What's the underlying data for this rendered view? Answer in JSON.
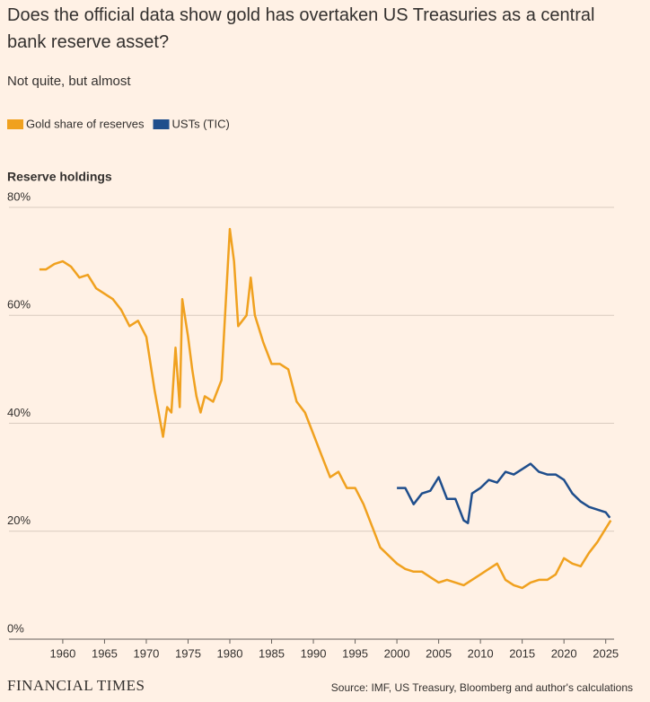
{
  "chart_data": {
    "type": "line",
    "title": "Does the official data show gold has overtaken US Treasuries as a central bank reserve asset?",
    "subtitle": "Not quite, but almost",
    "y_label": "Reserve holdings",
    "source": "Source: IMF, US Treasury, Bloomberg and author's calculations",
    "brand": "FINANCIAL TIMES",
    "xlim": [
      1957,
      2026
    ],
    "xticks": [
      1960,
      1965,
      1970,
      1975,
      1980,
      1985,
      1990,
      1995,
      2000,
      2005,
      2010,
      2015,
      2020,
      2025
    ],
    "ylim": [
      0,
      80
    ],
    "yticks": [
      {
        "value": 0,
        "label": "0%"
      },
      {
        "value": 20,
        "label": "20%"
      },
      {
        "value": 40,
        "label": "40%"
      },
      {
        "value": 60,
        "label": "60%"
      },
      {
        "value": 80,
        "label": "80%"
      }
    ],
    "grid": true,
    "series": [
      {
        "name": "Gold share of reserves",
        "color": "#f0a11f",
        "x": [
          1957.2,
          1958,
          1959,
          1960,
          1961,
          1962,
          1963,
          1964,
          1965,
          1966,
          1967,
          1968,
          1969,
          1970,
          1971,
          1972,
          1972.5,
          1973,
          1973.5,
          1974,
          1974.3,
          1975,
          1975.5,
          1976,
          1976.5,
          1977,
          1978,
          1979,
          1980,
          1980.5,
          1981,
          1982,
          1982.5,
          1983,
          1984,
          1985,
          1986,
          1987,
          1988,
          1989,
          1990,
          1991,
          1992,
          1993,
          1994,
          1995,
          1996,
          1997,
          1998,
          1999,
          2000,
          2001,
          2002,
          2003,
          2004,
          2005,
          2006,
          2007,
          2008,
          2009,
          2010,
          2011,
          2012,
          2013,
          2014,
          2015,
          2016,
          2017,
          2018,
          2019,
          2020,
          2021,
          2022,
          2023,
          2024,
          2025,
          2025.6
        ],
        "values": [
          68.5,
          68.5,
          69.5,
          70,
          69,
          67,
          67.5,
          65,
          64,
          63,
          61,
          58,
          59,
          56,
          46,
          37.5,
          43,
          42,
          54,
          43,
          63,
          56,
          50,
          45,
          42,
          45,
          44,
          48,
          76,
          70,
          58,
          60,
          67,
          60,
          55,
          51,
          51,
          50,
          44,
          42,
          38,
          34,
          30,
          31,
          28,
          28,
          25,
          21,
          17,
          15.5,
          14,
          13,
          12.5,
          12.5,
          11.5,
          10.5,
          11,
          10.5,
          10,
          11,
          12,
          13,
          14,
          11,
          10,
          9.5,
          10.5,
          11,
          11,
          12,
          15,
          14,
          13.5,
          16,
          18,
          20.5,
          22
        ]
      },
      {
        "name": "USTs (TIC)",
        "color": "#1f4e8c",
        "x": [
          2000,
          2001,
          2002,
          2003,
          2004,
          2005,
          2006,
          2007,
          2008,
          2008.5,
          2009,
          2010,
          2011,
          2012,
          2013,
          2014,
          2015,
          2016,
          2017,
          2018,
          2019,
          2020,
          2021,
          2022,
          2023,
          2024,
          2025,
          2025.5
        ],
        "values": [
          28,
          28,
          25,
          27,
          27.5,
          30,
          26,
          26,
          22,
          21.5,
          27,
          28,
          29.5,
          29,
          31,
          30.5,
          31.5,
          32.5,
          31,
          30.5,
          30.5,
          29.5,
          27,
          25.5,
          24.5,
          24,
          23.5,
          22.5
        ]
      }
    ]
  }
}
